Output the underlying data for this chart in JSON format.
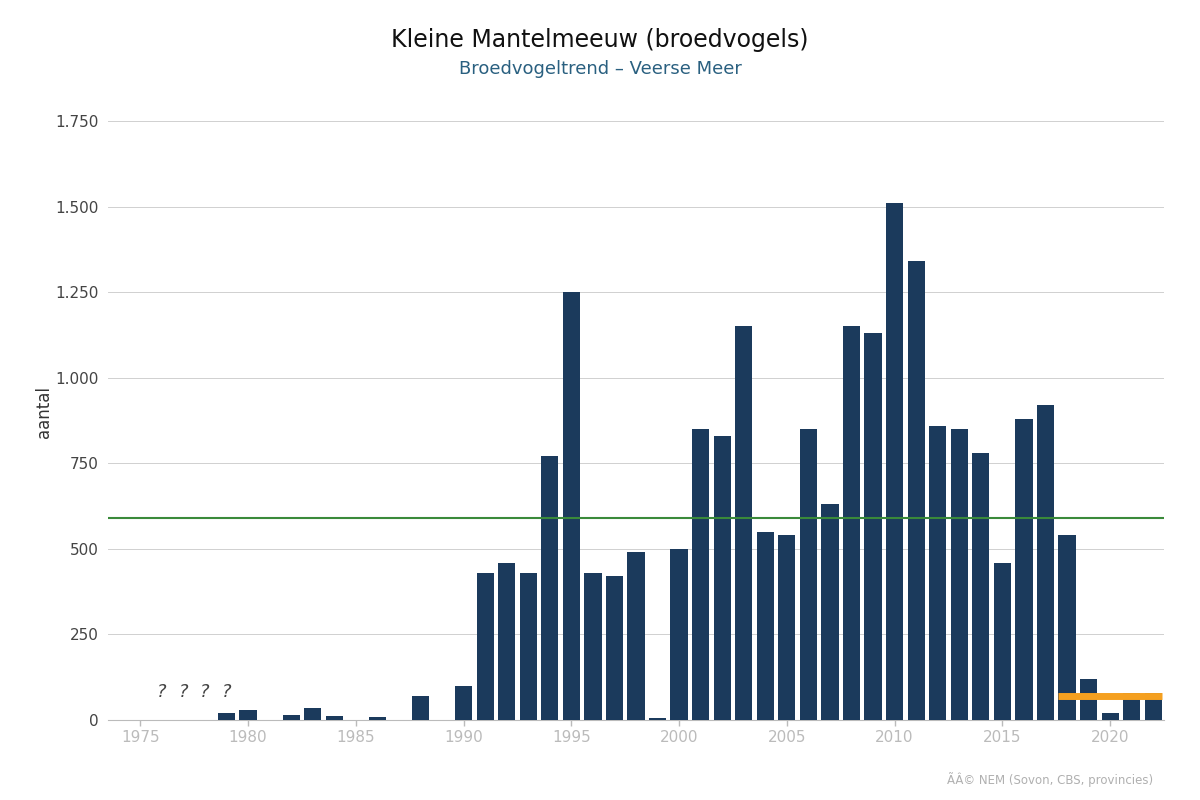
{
  "title": "Kleine Mantelmeeuw (broedvogels)",
  "subtitle": "Broedvogeltrend – Veerse Meer",
  "ylabel": "aantal",
  "copyright": "ÃÂ© NEM (Sovon, CBS, provincies)",
  "bar_color": "#1b3a5c",
  "green_line_y": 590,
  "green_line_color": "#3a8a3a",
  "orange_line_y": 70,
  "orange_line_x_start": 2017.6,
  "orange_line_x_end": 2022.4,
  "orange_line_color": "#f5a020",
  "question_years": [
    1976,
    1977,
    1978,
    1979
  ],
  "question_y": 55,
  "ylim": [
    0,
    1800
  ],
  "yticks": [
    0,
    250,
    500,
    750,
    1000,
    1250,
    1500,
    1750
  ],
  "xlim": [
    1973.5,
    2022.5
  ],
  "xticks": [
    1975,
    1980,
    1985,
    1990,
    1995,
    2000,
    2005,
    2010,
    2015,
    2020
  ],
  "years": [
    1979,
    1980,
    1981,
    1982,
    1983,
    1984,
    1985,
    1986,
    1987,
    1988,
    1990,
    1991,
    1992,
    1993,
    1994,
    1995,
    1996,
    1997,
    1998,
    1999,
    2000,
    2001,
    2002,
    2003,
    2004,
    2005,
    2006,
    2007,
    2008,
    2009,
    2010,
    2011,
    2012,
    2013,
    2014,
    2015,
    2016,
    2017,
    2018,
    2019,
    2020,
    2021,
    2022
  ],
  "values": [
    20,
    30,
    0,
    15,
    35,
    12,
    0,
    10,
    0,
    70,
    100,
    430,
    460,
    430,
    770,
    1250,
    430,
    420,
    490,
    5,
    500,
    850,
    830,
    1150,
    550,
    540,
    850,
    630,
    1150,
    1130,
    1510,
    1340,
    860,
    850,
    780,
    460,
    880,
    920,
    540,
    120,
    20,
    80,
    80
  ]
}
